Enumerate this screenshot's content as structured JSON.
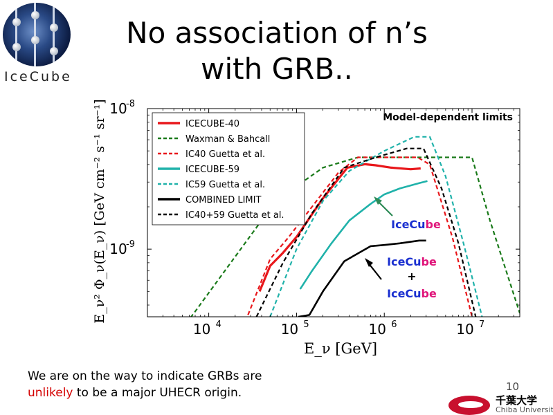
{
  "slide": {
    "title_line1": "No association of n’s",
    "title_line2": "with GRB..",
    "logo_text": "IceCube",
    "footer_line1": "We are on the way to indicate GRBs are",
    "footer_highlight": "unlikely",
    "footer_line2_rest": " to be a major UHECR origin.",
    "page_number": "10",
    "university_jp": "千葉大学",
    "university_en": "Chiba University"
  },
  "chart_data": {
    "type": "line",
    "x_scale": "log",
    "y_scale": "log",
    "xlim": [
      2000,
      35000000
    ],
    "ylim": [
      3.3e-10,
      1e-08
    ],
    "xlabel": "E_ν  [GeV]",
    "ylabel": "E_ν² Φ_ν(E_ν)  [GeV cm⁻² s⁻¹ sr⁻¹]",
    "x_ticks": [
      {
        "value": 10000,
        "base": "10",
        "exp": "4"
      },
      {
        "value": 100000,
        "base": "10",
        "exp": "5"
      },
      {
        "value": 1000000,
        "base": "10",
        "exp": "6"
      },
      {
        "value": 10000000,
        "base": "10",
        "exp": "7"
      }
    ],
    "y_ticks": [
      {
        "value": 1e-09,
        "base": "10",
        "exp": "-9"
      },
      {
        "value": 1e-08,
        "base": "10",
        "exp": "-8"
      }
    ],
    "annotation_title": "Model-dependent limits",
    "legend": {
      "placement": "top-left"
    },
    "series": [
      {
        "name": "ICECUBE-40",
        "color": "#e8171b",
        "dash": false,
        "width": 3.2,
        "x": [
          38000,
          50000,
          70000,
          100000,
          200000,
          380000,
          600000,
          800000,
          1200000,
          2000000,
          2600000
        ],
        "y": [
          5e-10,
          7.6e-10,
          9.4e-10,
          1.22e-09,
          2.3e-09,
          3.8e-09,
          4.02e-09,
          3.95e-09,
          3.8e-09,
          3.7e-09,
          3.75e-09
        ]
      },
      {
        "name": "Waxman & Bahcall",
        "color": "#1a7a1a",
        "dash": true,
        "width": 2.2,
        "x": [
          1500,
          7000,
          40000,
          100000,
          200000,
          500000,
          1000000,
          10000000,
          16000000,
          35000000
        ],
        "y": [
          1e-10,
          3.6e-10,
          1.6e-09,
          2.8e-09,
          3.8e-09,
          4.5e-09,
          4.5e-09,
          4.5e-09,
          1.6e-09,
          3.5e-10
        ]
      },
      {
        "name": "IC40 Guetta et al.",
        "color": "#e8171b",
        "dash": true,
        "width": 2.2,
        "x": [
          28000,
          50000,
          80000,
          150000,
          300000,
          500000,
          2400000,
          3300000,
          6000000,
          10000000
        ],
        "y": [
          3.4e-10,
          8.5e-10,
          1.2e-09,
          2e-09,
          3.5e-09,
          4.5e-09,
          4.5e-09,
          4e-09,
          1.2e-09,
          3.3e-10
        ]
      },
      {
        "name": "ICECUBE-59",
        "color": "#20b2aa",
        "dash": false,
        "width": 2.6,
        "x": [
          110000,
          150000,
          250000,
          400000,
          700000,
          1000000,
          1500000,
          2500000,
          3100000
        ],
        "y": [
          5.2e-10,
          7e-10,
          1.1e-09,
          1.6e-09,
          2.1e-09,
          2.45e-09,
          2.7e-09,
          2.95e-09,
          3.05e-09
        ]
      },
      {
        "name": "IC59 Guetta et al.",
        "color": "#20b2aa",
        "dash": true,
        "width": 2.2,
        "x": [
          50000,
          100000,
          200000,
          400000,
          1000000,
          2200000,
          3300000,
          5000000,
          8000000,
          13000000
        ],
        "y": [
          3.3e-10,
          1e-09,
          2.2e-09,
          3.6e-09,
          5e-09,
          6.3e-09,
          6.3e-09,
          3.3e-09,
          1.1e-09,
          3.3e-10
        ]
      },
      {
        "name": "COMBINED LIMIT",
        "color": "#000000",
        "dash": false,
        "width": 2.6,
        "x": [
          140000,
          200000,
          350000,
          700000,
          1000000,
          1500000,
          2500000,
          3000000
        ],
        "y": [
          3.4e-10,
          5e-10,
          8.2e-10,
          1.05e-09,
          1.07e-09,
          1.1e-09,
          1.15e-09,
          1.15e-09
        ],
        "start": [
          105000,
          3.3e-10
        ]
      },
      {
        "name": "IC40+59 Guetta et al.",
        "color": "#000000",
        "dash": true,
        "width": 2.2,
        "x": [
          35000,
          70000,
          150000,
          350000,
          800000,
          1800000,
          2800000,
          4500000,
          7000000,
          11000000
        ],
        "y": [
          3.3e-10,
          8e-10,
          1.8e-09,
          3.8e-09,
          4.5e-09,
          5.2e-09,
          5.2e-09,
          2.7e-09,
          1.1e-09,
          3.3e-10
        ]
      }
    ],
    "annotations": [
      {
        "label_parts": [
          {
            "text": "IceCu",
            "color": "#1a2fd0"
          },
          {
            "text": "be",
            "color": "#e0157a"
          }
        ],
        "arrow_color": "#2e8b57"
      },
      {
        "label_parts": [
          {
            "text": "IceCu",
            "color": "#1a2fd0"
          },
          {
            "text": "be",
            "color": "#e0157a"
          }
        ],
        "plus": "+",
        "label2_parts": [
          {
            "text": "IceCu",
            "color": "#1a2fd0"
          },
          {
            "text": "be",
            "color": "#e0157a"
          }
        ],
        "arrow_color": "#000000"
      }
    ]
  }
}
